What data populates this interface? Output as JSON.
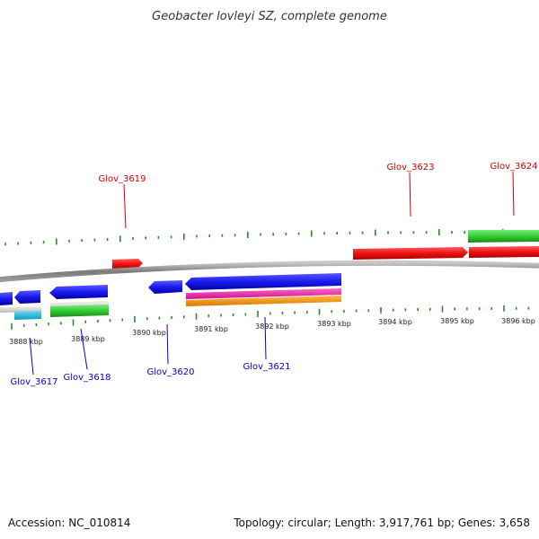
{
  "title": "Geobacter lovleyi SZ, complete genome",
  "footer": {
    "accession": "Accession: NC_010814",
    "topology": "Topology: circular; Length: 3,917,761 bp; Genes: 3,658"
  },
  "colors": {
    "backbone": "#8a8a8a",
    "tick": "#2a8a2a",
    "forward_label": "#cc0000",
    "reverse_label": "#0000cc",
    "red": "#ee1111",
    "blue": "#1a1aee",
    "green": "#33cc33",
    "cyan": "#22bbdd",
    "magenta": "#ee22aa",
    "orange": "#ff9900"
  },
  "scale": {
    "unit": "kbp",
    "labels": [
      "3888 kbp",
      "3889 kbp",
      "3890 kbp",
      "3891 kbp",
      "3892 kbp",
      "3893 kbp",
      "3894 kbp",
      "3895 kbp",
      "3896 kbp"
    ]
  },
  "gene_labels": {
    "forward": [
      "Glov_3619",
      "Glov_3623",
      "Glov_3624"
    ],
    "reverse": [
      "Glov_3617",
      "Glov_3618",
      "Glov_3620",
      "Glov_3621"
    ]
  }
}
